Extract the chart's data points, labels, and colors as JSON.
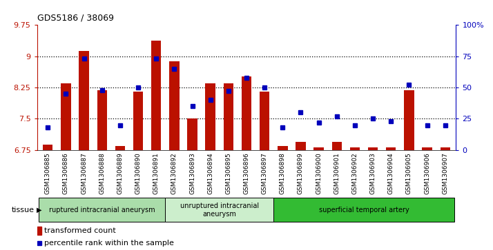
{
  "title": "GDS5186 / 38069",
  "samples": [
    "GSM1306885",
    "GSM1306886",
    "GSM1306887",
    "GSM1306888",
    "GSM1306889",
    "GSM1306890",
    "GSM1306891",
    "GSM1306892",
    "GSM1306893",
    "GSM1306894",
    "GSM1306895",
    "GSM1306896",
    "GSM1306897",
    "GSM1306898",
    "GSM1306899",
    "GSM1306900",
    "GSM1306901",
    "GSM1306902",
    "GSM1306903",
    "GSM1306904",
    "GSM1306905",
    "GSM1306906",
    "GSM1306907"
  ],
  "transformed_count": [
    6.88,
    8.35,
    9.12,
    8.18,
    6.85,
    8.15,
    9.38,
    8.88,
    7.5,
    8.35,
    8.35,
    8.52,
    8.15,
    6.85,
    6.95,
    6.82,
    6.95,
    6.82,
    6.82,
    6.82,
    8.18,
    6.82,
    6.82
  ],
  "percentile_rank": [
    18,
    45,
    73,
    48,
    20,
    50,
    73,
    65,
    35,
    40,
    47,
    58,
    50,
    18,
    30,
    22,
    27,
    20,
    25,
    23,
    52,
    20,
    20
  ],
  "ylim_left": [
    6.75,
    9.75
  ],
  "ylim_right": [
    0,
    100
  ],
  "yticks_left": [
    6.75,
    7.5,
    8.25,
    9.0,
    9.75
  ],
  "ytick_labels_left": [
    "6.75",
    "7.5",
    "8.25",
    "9",
    "9.75"
  ],
  "yticks_right": [
    0,
    25,
    50,
    75,
    100
  ],
  "ytick_labels_right": [
    "0",
    "25",
    "50",
    "75",
    "100%"
  ],
  "bar_color": "#bb1100",
  "dot_color": "#0000bb",
  "tissue_groups": [
    {
      "label": "ruptured intracranial aneurysm",
      "start": 0,
      "end": 7,
      "color": "#aaddaa"
    },
    {
      "label": "unruptured intracranial\naneurysm",
      "start": 7,
      "end": 13,
      "color": "#cceecc"
    },
    {
      "label": "superficial temporal artery",
      "start": 13,
      "end": 23,
      "color": "#33bb33"
    }
  ],
  "legend_bar_label": "transformed count",
  "legend_dot_label": "percentile rank within the sample",
  "tissue_label": "tissue",
  "xtick_bg": "#d8d8d8",
  "grid_ticks": [
    7.5,
    8.25,
    9.0
  ]
}
